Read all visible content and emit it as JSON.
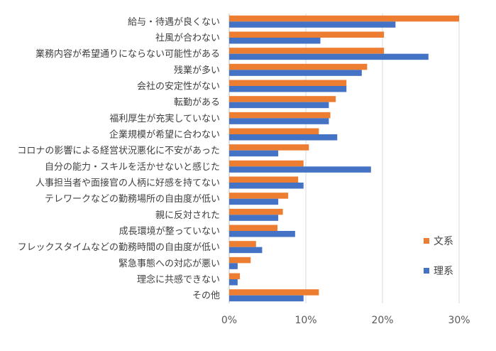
{
  "chart_data": {
    "type": "bar",
    "orientation": "horizontal",
    "categories": [
      "給与・待遇が良くない",
      "社風が合わない",
      "業務内容が希望通りにならない可能性がある",
      "残業が多い",
      "会社の安定性がない",
      "転勤がある",
      "福利厚生が充実していない",
      "企業規模が希望に合わない",
      "コロナの影響による経営状況悪化に不安があった",
      "自分の能力・スキルを活かせないと感じた",
      "人事担当者や面接官の人柄に好感を持てない",
      "テレワークなどの勤務場所の自由度が低い",
      "親に反対された",
      "成長環境が整っていない",
      "フレックスタイムなどの勤務時間の自由度が低い",
      "緊急事態への対応が悪い",
      "理念に共感できない",
      "その他"
    ],
    "series": [
      {
        "name": "文系",
        "color": "#ED7D31",
        "values": [
          30.0,
          20.2,
          20.2,
          18.0,
          15.3,
          13.9,
          13.2,
          11.7,
          10.4,
          9.7,
          9.0,
          7.7,
          7.0,
          6.3,
          3.5,
          2.8,
          1.4,
          11.7
        ]
      },
      {
        "name": "理系",
        "color": "#4472C4",
        "values": [
          21.7,
          11.9,
          26.0,
          17.3,
          15.3,
          13.0,
          13.0,
          14.1,
          6.4,
          18.5,
          9.7,
          6.4,
          6.4,
          8.6,
          4.3,
          1.1,
          1.1,
          9.7
        ]
      }
    ],
    "x_ticks": [
      "0%",
      "10%",
      "20%",
      "30%"
    ],
    "xlim": [
      0,
      30
    ],
    "grid": true,
    "legend_position": "right"
  }
}
